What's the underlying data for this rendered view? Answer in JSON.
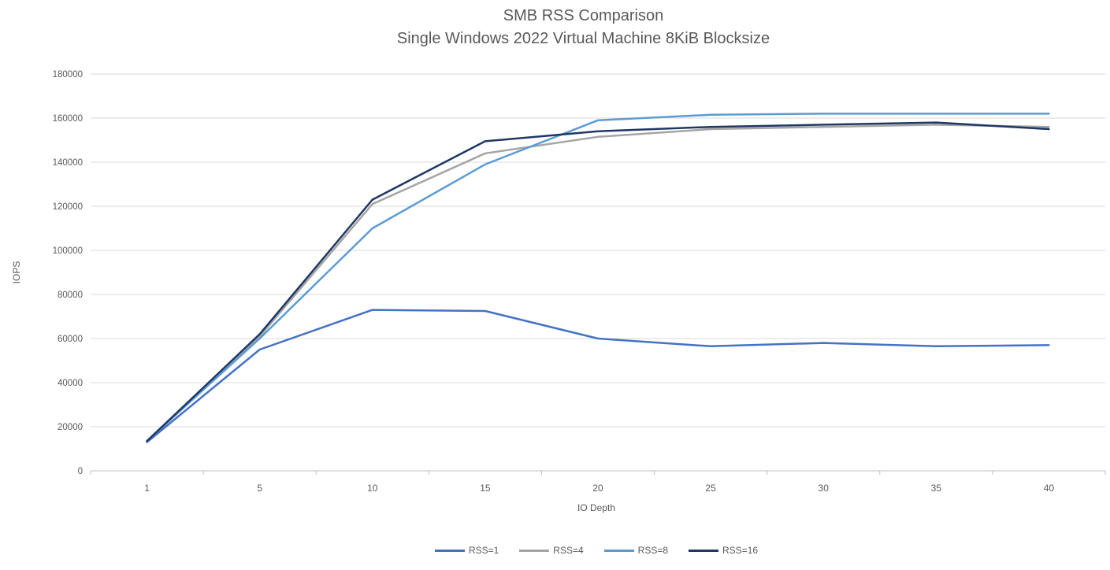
{
  "page": {
    "background": "#ffffff"
  },
  "chart_data": {
    "type": "line",
    "title": "SMB RSS Comparison",
    "subtitle": "Single Windows 2022 Virtual Machine 8KiB Blocksize",
    "xlabel": "IO Depth",
    "ylabel": "IOPS",
    "categories": [
      1,
      5,
      10,
      15,
      20,
      25,
      30,
      35,
      40
    ],
    "ylim": [
      0,
      180000
    ],
    "y_tick_step": 20000,
    "y_tick_labels": [
      "0",
      "20000",
      "40000",
      "60000",
      "80000",
      "100000",
      "120000",
      "140000",
      "160000",
      "180000"
    ],
    "grid": true,
    "legend_position": "bottom",
    "series": [
      {
        "name": "RSS=1",
        "color": "#4472C4",
        "values": [
          13000,
          55000,
          73000,
          72500,
          60000,
          56500,
          58000,
          56500,
          57000
        ]
      },
      {
        "name": "RSS=4",
        "color": "#A5A5A5",
        "values": [
          13500,
          61000,
          121000,
          144000,
          151500,
          155000,
          156000,
          157000,
          156000
        ]
      },
      {
        "name": "RSS=8",
        "color": "#5B9BD5",
        "values": [
          13500,
          60000,
          110000,
          139000,
          159000,
          161500,
          162000,
          162000,
          162000
        ]
      },
      {
        "name": "RSS=16",
        "color": "#1F3864",
        "values": [
          13500,
          62000,
          123000,
          149500,
          154000,
          156000,
          157000,
          158000,
          155000
        ]
      }
    ],
    "text_color": "#595959",
    "grid_color": "#D9D9D9",
    "axis_color": "#BFBFBF"
  }
}
